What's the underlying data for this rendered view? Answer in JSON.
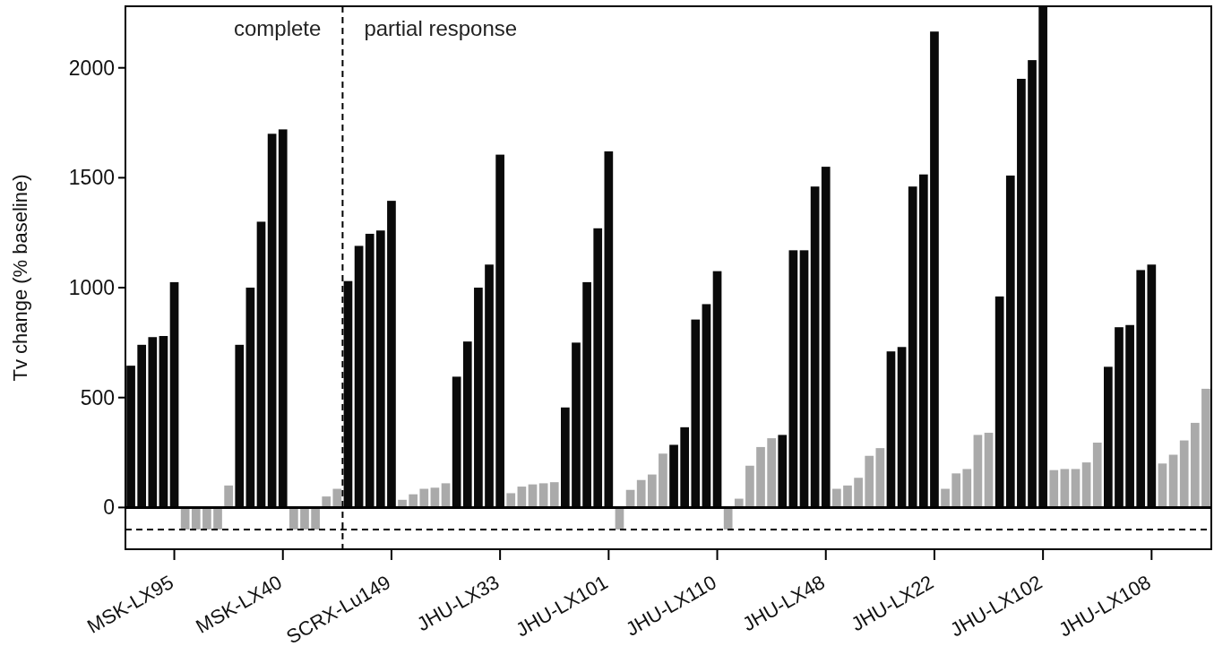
{
  "chart_data": {
    "type": "bar",
    "ylabel": "Tv change (% baseline)",
    "categories": [
      null,
      null,
      null,
      null,
      "MSK-LX95",
      null,
      null,
      null,
      null,
      null,
      null,
      null,
      null,
      null,
      "MSK-LX40",
      null,
      null,
      null,
      null,
      null,
      null,
      null,
      null,
      null,
      "SCRX-Lu149",
      null,
      null,
      null,
      null,
      null,
      null,
      null,
      null,
      null,
      "JHU-LX33",
      null,
      null,
      null,
      null,
      null,
      null,
      null,
      null,
      null,
      "JHU-LX101",
      null,
      null,
      null,
      null,
      null,
      null,
      null,
      null,
      null,
      "JHU-LX110",
      null,
      null,
      null,
      null,
      null,
      null,
      null,
      null,
      null,
      "JHU-LX48",
      null,
      null,
      null,
      null,
      null,
      null,
      null,
      null,
      null,
      "JHU-LX22",
      null,
      null,
      null,
      null,
      null,
      null,
      null,
      null,
      null,
      "JHU-LX102",
      null,
      null,
      null,
      null,
      null,
      null,
      null,
      null,
      null,
      "JHU-LX108",
      null,
      null,
      null,
      null,
      null
    ],
    "ylim": [
      -190,
      2280
    ],
    "yticks": [
      0,
      500,
      1000,
      1500,
      2000
    ],
    "grid": false,
    "values": [
      645,
      740,
      775,
      780,
      1025,
      -100,
      -100,
      -100,
      -100,
      100,
      740,
      1000,
      1300,
      1700,
      1720,
      -100,
      -100,
      -100,
      50,
      85,
      1030,
      1190,
      1245,
      1260,
      1395,
      35,
      60,
      85,
      90,
      110,
      595,
      755,
      1000,
      1105,
      1605,
      65,
      95,
      105,
      110,
      115,
      455,
      750,
      1025,
      1270,
      1620,
      -100,
      80,
      125,
      150,
      245,
      285,
      365,
      855,
      925,
      1075,
      -100,
      40,
      190,
      275,
      315,
      330,
      1170,
      1170,
      1460,
      1550,
      85,
      100,
      135,
      235,
      270,
      710,
      730,
      1460,
      1515,
      2165,
      85,
      155,
      175,
      330,
      340,
      960,
      1510,
      1950,
      2035,
      2280,
      170,
      175,
      175,
      205,
      295,
      640,
      820,
      830,
      1080,
      1105,
      200,
      240,
      305,
      385,
      540
    ],
    "colors": [
      "#0a0a0a",
      "#0a0a0a",
      "#0a0a0a",
      "#0a0a0a",
      "#0a0a0a",
      "#aaaaaa",
      "#aaaaaa",
      "#aaaaaa",
      "#aaaaaa",
      "#aaaaaa",
      "#0a0a0a",
      "#0a0a0a",
      "#0a0a0a",
      "#0a0a0a",
      "#0a0a0a",
      "#aaaaaa",
      "#aaaaaa",
      "#aaaaaa",
      "#aaaaaa",
      "#aaaaaa",
      "#0a0a0a",
      "#0a0a0a",
      "#0a0a0a",
      "#0a0a0a",
      "#0a0a0a",
      "#aaaaaa",
      "#aaaaaa",
      "#aaaaaa",
      "#aaaaaa",
      "#aaaaaa",
      "#0a0a0a",
      "#0a0a0a",
      "#0a0a0a",
      "#0a0a0a",
      "#0a0a0a",
      "#aaaaaa",
      "#aaaaaa",
      "#aaaaaa",
      "#aaaaaa",
      "#aaaaaa",
      "#0a0a0a",
      "#0a0a0a",
      "#0a0a0a",
      "#0a0a0a",
      "#0a0a0a",
      "#aaaaaa",
      "#aaaaaa",
      "#aaaaaa",
      "#aaaaaa",
      "#aaaaaa",
      "#0a0a0a",
      "#0a0a0a",
      "#0a0a0a",
      "#0a0a0a",
      "#0a0a0a",
      "#aaaaaa",
      "#aaaaaa",
      "#aaaaaa",
      "#aaaaaa",
      "#aaaaaa",
      "#0a0a0a",
      "#0a0a0a",
      "#0a0a0a",
      "#0a0a0a",
      "#0a0a0a",
      "#aaaaaa",
      "#aaaaaa",
      "#aaaaaa",
      "#aaaaaa",
      "#aaaaaa",
      "#0a0a0a",
      "#0a0a0a",
      "#0a0a0a",
      "#0a0a0a",
      "#0a0a0a",
      "#aaaaaa",
      "#aaaaaa",
      "#aaaaaa",
      "#aaaaaa",
      "#aaaaaa",
      "#0a0a0a",
      "#0a0a0a",
      "#0a0a0a",
      "#0a0a0a",
      "#0a0a0a",
      "#aaaaaa",
      "#aaaaaa",
      "#aaaaaa",
      "#aaaaaa",
      "#aaaaaa",
      "#0a0a0a",
      "#0a0a0a",
      "#0a0a0a",
      "#0a0a0a",
      "#0a0a0a",
      "#aaaaaa",
      "#aaaaaa",
      "#aaaaaa",
      "#aaaaaa",
      "#aaaaaa"
    ],
    "ref_lines": [
      {
        "axis": "y",
        "value": 0,
        "line_style": "solid"
      },
      {
        "axis": "y",
        "value": -100,
        "line_style": "dashed"
      }
    ],
    "annotations": [
      "complete",
      "partial response"
    ]
  }
}
